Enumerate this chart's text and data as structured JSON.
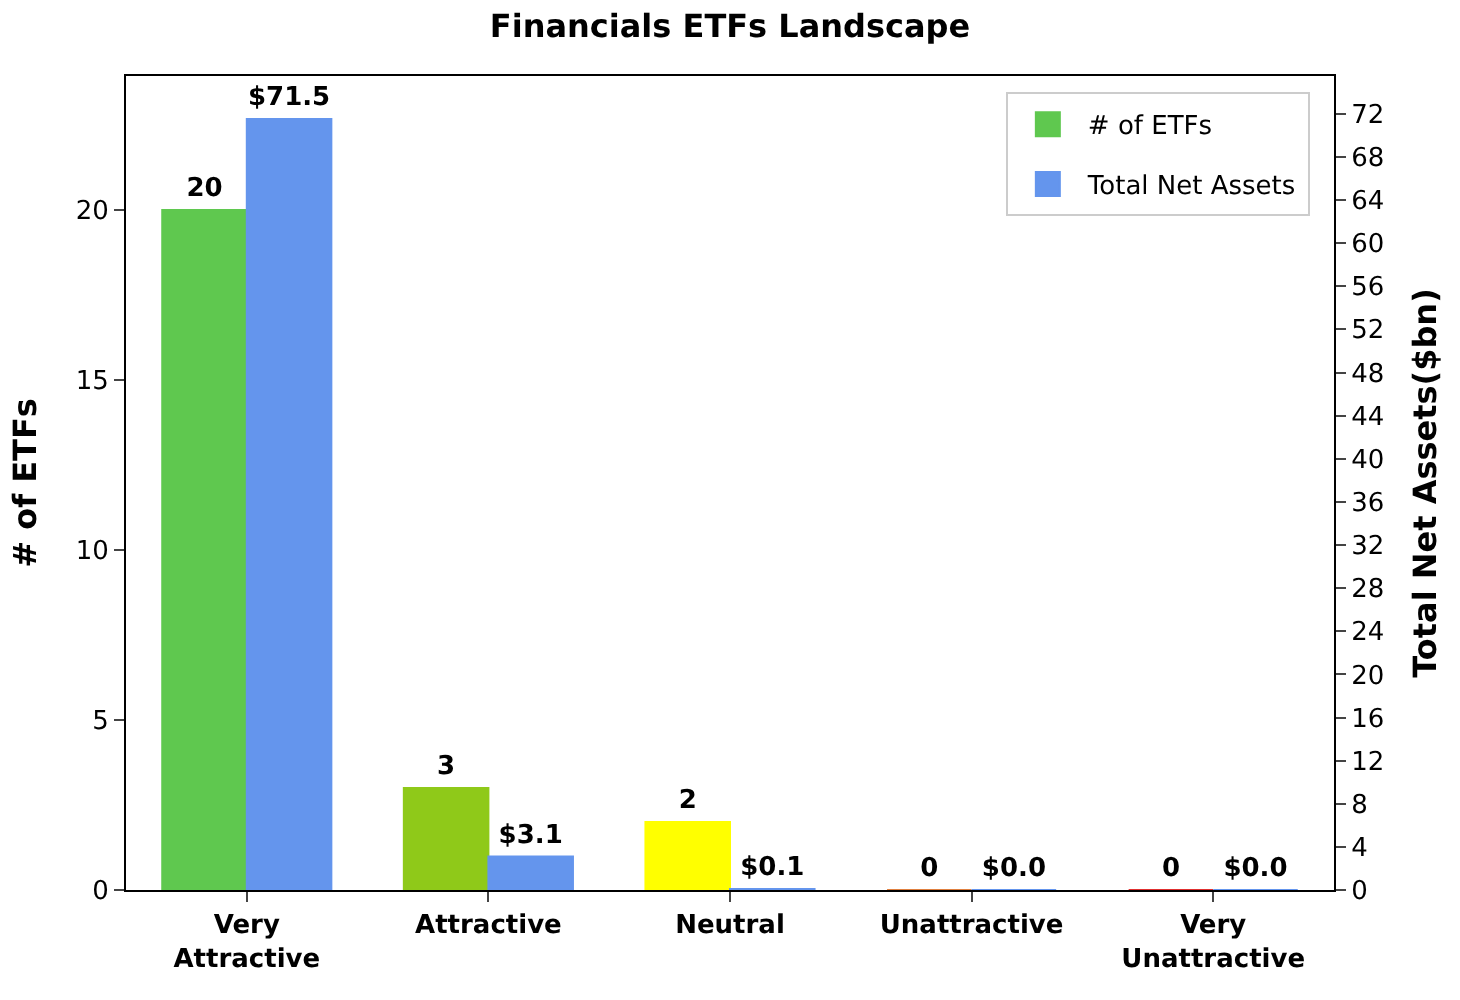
{
  "chart_data": {
    "type": "bar",
    "title": "Financials ETFs Landscape",
    "ylabel": "# of ETFs",
    "y2label": "Total Net Assets($bn)",
    "categories": [
      "Very\nAttractive",
      "Attractive",
      "Neutral",
      "Unattractive",
      "Very\nUnattractive"
    ],
    "series": [
      {
        "name": "# of ETFs",
        "color": "#5fc84f",
        "colors": [
          "#5fc84f",
          "#8fc919",
          "#ffff00",
          "#e08040",
          "#e03030"
        ],
        "values": [
          20,
          3,
          2,
          0,
          0
        ],
        "value_labels": [
          "20",
          "3",
          "2",
          "0",
          "0"
        ]
      },
      {
        "name": "Total Net Assets",
        "color": "#6495ed",
        "axis": "y2",
        "values": [
          71.5,
          3.1,
          0.1,
          0.0,
          0.0
        ],
        "value_labels": [
          "$71.5",
          "$3.1",
          "$0.1",
          "$0.0",
          "$0.0"
        ]
      }
    ],
    "ylim": [
      0,
      23.94
    ],
    "yticks": [
      0,
      5,
      10,
      15,
      20
    ],
    "y2lim": [
      0,
      75.5
    ],
    "y2ticks": [
      0,
      4,
      8,
      12,
      16,
      20,
      24,
      28,
      32,
      36,
      40,
      44,
      48,
      52,
      56,
      60,
      64,
      68,
      72
    ],
    "legend": "top right"
  }
}
